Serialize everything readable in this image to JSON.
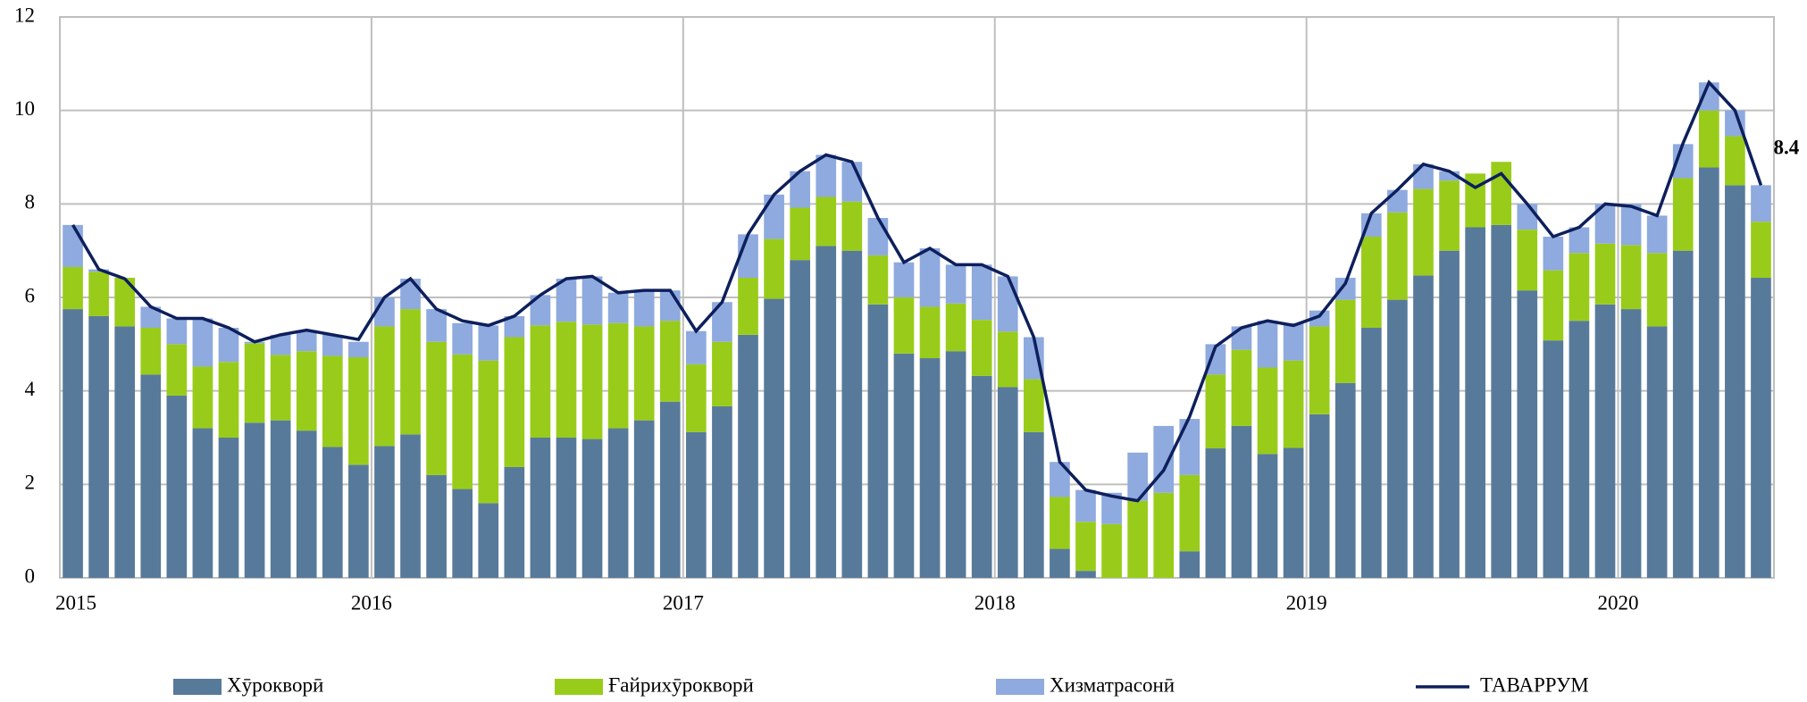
{
  "chart_data": {
    "type": "bar",
    "stacked": true,
    "grid": true,
    "legend": "bottom",
    "categories": [
      "2015",
      null,
      null,
      null,
      null,
      null,
      null,
      null,
      null,
      null,
      null,
      null,
      "2016",
      null,
      null,
      null,
      null,
      null,
      null,
      null,
      null,
      null,
      null,
      null,
      "2017",
      null,
      null,
      null,
      null,
      null,
      null,
      null,
      null,
      null,
      null,
      null,
      "2018",
      null,
      null,
      null,
      null,
      null,
      null,
      null,
      null,
      null,
      null,
      null,
      "2019",
      null,
      null,
      null,
      null,
      null,
      null,
      null,
      null,
      null,
      null,
      null,
      "2020",
      null,
      null,
      null,
      null,
      null
    ],
    "ylim": [
      0,
      12
    ],
    "yticks": [
      0,
      2,
      4,
      6,
      8,
      10,
      12
    ],
    "series": [
      {
        "name": "Хӯрокворӣ",
        "color": "#587a9a",
        "values": [
          5.75,
          5.6,
          5.38,
          4.35,
          3.9,
          3.2,
          3.0,
          3.32,
          3.37,
          3.15,
          2.8,
          2.42,
          2.82,
          3.07,
          2.2,
          1.9,
          1.6,
          2.37,
          3.0,
          3.0,
          2.97,
          3.2,
          3.37,
          3.77,
          3.12,
          3.67,
          5.2,
          5.97,
          6.8,
          7.1,
          7.0,
          5.85,
          4.8,
          4.7,
          4.85,
          4.32,
          4.08,
          3.12,
          0.62,
          0.15,
          0,
          0,
          0,
          0.57,
          2.77,
          3.25,
          2.65,
          2.78,
          3.5,
          4.17,
          5.35,
          5.95,
          6.47,
          7.0,
          7.5,
          7.55,
          6.15,
          5.08,
          5.5,
          5.85,
          5.75,
          5.38,
          7.0,
          8.78,
          8.4,
          6.42
        ]
      },
      {
        "name": "Ғайрихӯрокворӣ",
        "color": "#99cc1a",
        "values": [
          0.9,
          0.95,
          1.04,
          1.0,
          1.1,
          1.32,
          1.62,
          1.7,
          1.4,
          1.7,
          1.95,
          2.3,
          2.56,
          2.68,
          2.85,
          2.88,
          3.05,
          2.78,
          2.4,
          2.48,
          2.45,
          2.25,
          2.01,
          1.73,
          1.45,
          1.38,
          1.22,
          1.28,
          1.12,
          1.05,
          1.05,
          1.05,
          1.2,
          1.1,
          1.02,
          1.2,
          1.19,
          1.13,
          1.11,
          1.05,
          1.15,
          1.65,
          1.82,
          1.63,
          1.58,
          1.63,
          1.85,
          1.87,
          1.88,
          1.78,
          1.95,
          1.87,
          1.85,
          1.5,
          1.15,
          1.35,
          1.3,
          1.5,
          1.45,
          1.3,
          1.37,
          1.57,
          1.55,
          1.22,
          1.05,
          1.2
        ]
      },
      {
        "name": "Хизматрасонӣ",
        "color": "#8eaade",
        "values": [
          0.9,
          0.05,
          0,
          0.45,
          0.55,
          1.03,
          0.73,
          0.03,
          0.43,
          0.45,
          0.45,
          0.33,
          0.62,
          0.65,
          0.7,
          0.67,
          0.75,
          0.45,
          0.65,
          0.92,
          1.03,
          0.65,
          0.77,
          0.65,
          0.71,
          0.85,
          0.93,
          0.95,
          0.78,
          0.9,
          0.85,
          0.8,
          0.75,
          1.25,
          0.83,
          1.18,
          1.18,
          0.9,
          0.75,
          0.68,
          0.67,
          1.03,
          1.43,
          1.2,
          0.65,
          0.5,
          1.0,
          0.8,
          0.34,
          0.47,
          0.5,
          0.48,
          0.53,
          0.2,
          0,
          0,
          0.55,
          0.72,
          0.55,
          0.85,
          0.88,
          0.8,
          0.73,
          0.6,
          0.55,
          0.78
        ]
      },
      {
        "name": "ТАВАРРУМ",
        "type": "line",
        "color": "#0d1f5c",
        "values": [
          7.55,
          6.6,
          6.4,
          5.8,
          5.55,
          5.55,
          5.35,
          5.05,
          5.2,
          5.3,
          5.2,
          5.1,
          6.0,
          6.4,
          5.75,
          5.5,
          5.4,
          5.6,
          6.05,
          6.4,
          6.45,
          6.1,
          6.15,
          6.15,
          5.28,
          5.9,
          7.35,
          8.2,
          8.7,
          9.05,
          8.9,
          7.7,
          6.75,
          7.05,
          6.7,
          6.7,
          6.45,
          5.15,
          2.48,
          1.88,
          1.75,
          1.65,
          2.3,
          3.45,
          4.95,
          5.35,
          5.5,
          5.4,
          5.6,
          6.3,
          7.8,
          8.3,
          8.85,
          8.7,
          8.35,
          8.65,
          8.0,
          7.3,
          7.5,
          8.0,
          7.95,
          7.75,
          9.3,
          10.6,
          10.0,
          8.4
        ],
        "value_labels": [
          null,
          null,
          null,
          null,
          null,
          null,
          null,
          null,
          null,
          null,
          null,
          null,
          null,
          null,
          null,
          null,
          null,
          null,
          null,
          null,
          null,
          null,
          null,
          null,
          null,
          null,
          null,
          null,
          null,
          null,
          null,
          null,
          null,
          null,
          null,
          null,
          null,
          null,
          null,
          null,
          null,
          null,
          null,
          null,
          null,
          null,
          null,
          null,
          null,
          null,
          null,
          null,
          null,
          null,
          null,
          null,
          null,
          null,
          null,
          null,
          null,
          null,
          null,
          null,
          null,
          "8.4"
        ]
      }
    ]
  }
}
